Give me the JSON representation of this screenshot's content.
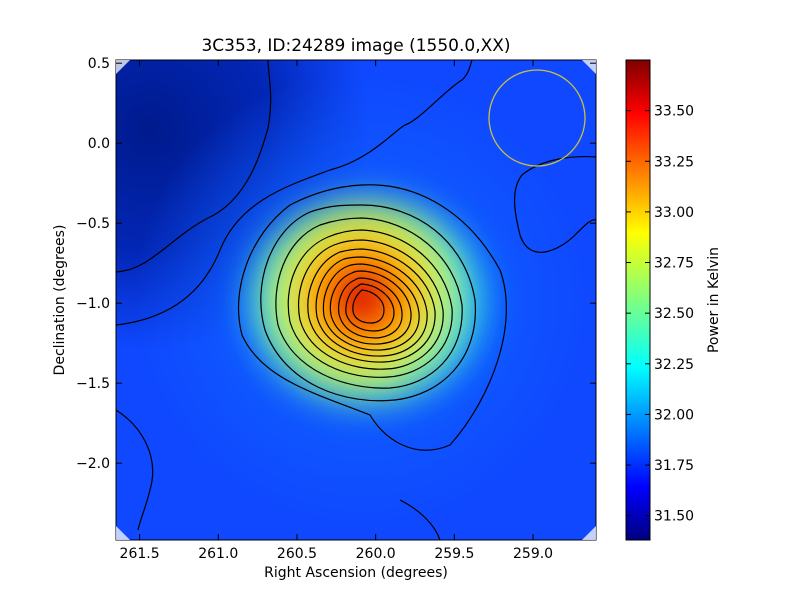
{
  "chart_data": {
    "type": "heatmap",
    "title": "3C353, ID:24289 image (1550.0,XX)",
    "xlabel": "Right Ascension (degrees)",
    "ylabel": "Declination (degrees)",
    "xlim": [
      261.65,
      258.6
    ],
    "ylim": [
      -2.48,
      0.52
    ],
    "x_ticks": [
      {
        "value": 261.5,
        "label": "261.5"
      },
      {
        "value": 261.0,
        "label": "261.0"
      },
      {
        "value": 260.5,
        "label": "260.5"
      },
      {
        "value": 260.0,
        "label": "260.0"
      },
      {
        "value": 259.5,
        "label": "259.5"
      },
      {
        "value": 259.0,
        "label": "259.0"
      }
    ],
    "y_ticks": [
      {
        "value": 0.5,
        "label": "0.5"
      },
      {
        "value": 0.0,
        "label": "0.0"
      },
      {
        "value": -0.5,
        "label": "−0.5"
      },
      {
        "value": -1.0,
        "label": "−1.0"
      },
      {
        "value": -1.5,
        "label": "−1.5"
      },
      {
        "value": -2.0,
        "label": "−2.0"
      }
    ],
    "colorbar": {
      "label": "Power in Kelvin",
      "range": [
        31.38,
        33.75
      ],
      "ticks": [
        {
          "value": 31.5,
          "label": "31.50"
        },
        {
          "value": 31.75,
          "label": "31.75"
        },
        {
          "value": 32.0,
          "label": "32.00"
        },
        {
          "value": 32.25,
          "label": "32.25"
        },
        {
          "value": 32.5,
          "label": "32.50"
        },
        {
          "value": 32.75,
          "label": "32.75"
        },
        {
          "value": 33.0,
          "label": "33.00"
        },
        {
          "value": 33.25,
          "label": "33.25"
        },
        {
          "value": 33.5,
          "label": "33.50"
        }
      ],
      "colormap": "jet"
    },
    "source_peak": {
      "ra": 260.07,
      "dec": -0.97,
      "value": 33.75
    },
    "beam_circle": {
      "ra": 258.98,
      "dec": 0.16,
      "radius_deg": 0.3,
      "color": "#c8c040"
    },
    "contour_color": "#000000",
    "grid": false
  }
}
